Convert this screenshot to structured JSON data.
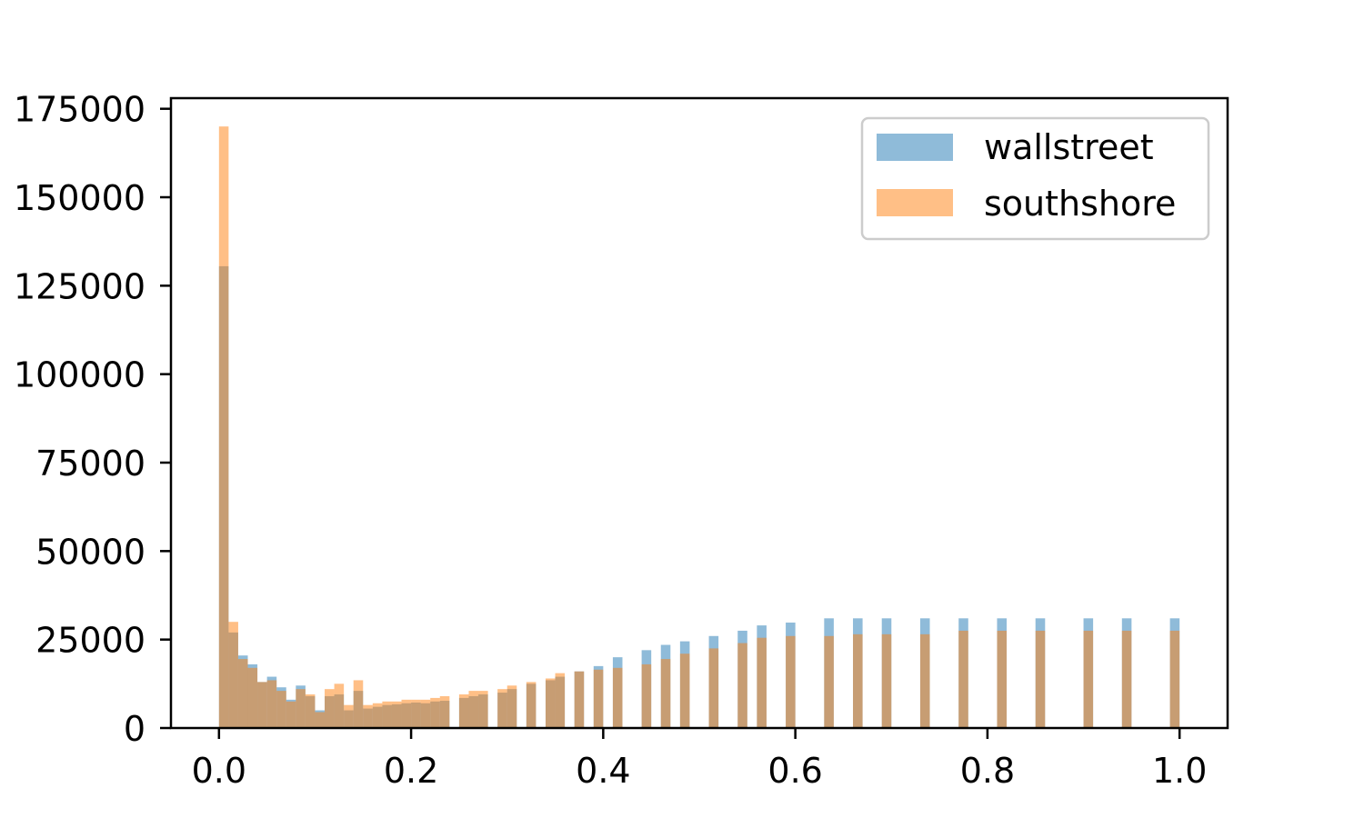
{
  "chart_data": {
    "type": "bar",
    "title": "",
    "xlabel": "",
    "ylabel": "",
    "xlim": [
      -0.05,
      1.05
    ],
    "ylim": [
      0,
      178000
    ],
    "xticks": [
      0.0,
      0.2,
      0.4,
      0.6,
      0.8,
      1.0
    ],
    "xtick_labels": [
      "0.0",
      "0.2",
      "0.4",
      "0.6",
      "0.8",
      "1.0"
    ],
    "yticks": [
      0,
      25000,
      50000,
      75000,
      100000,
      125000,
      150000,
      175000
    ],
    "ytick_labels": [
      "0",
      "25000",
      "50000",
      "75000",
      "100000",
      "125000",
      "150000",
      "175000"
    ],
    "bin_width": 0.01,
    "grid": false,
    "legend_position": "top-right",
    "x": [
      0.0,
      0.01,
      0.02,
      0.03,
      0.04,
      0.05,
      0.06,
      0.07,
      0.08,
      0.09,
      0.1,
      0.11,
      0.12,
      0.13,
      0.14,
      0.15,
      0.16,
      0.17,
      0.18,
      0.19,
      0.2,
      0.21,
      0.22,
      0.23,
      0.25,
      0.26,
      0.27,
      0.29,
      0.3,
      0.32,
      0.34,
      0.35,
      0.37,
      0.39,
      0.41,
      0.44,
      0.46,
      0.48,
      0.51,
      0.54,
      0.56,
      0.59,
      0.63,
      0.66,
      0.69,
      0.73,
      0.77,
      0.81,
      0.85,
      0.9,
      0.94,
      0.99
    ],
    "series": [
      {
        "name": "wallstreet",
        "color": "#1f77b4",
        "values": [
          130500,
          27000,
          20500,
          18000,
          13000,
          14500,
          11500,
          8000,
          12000,
          9000,
          5000,
          9000,
          9500,
          5000,
          10500,
          5500,
          6000,
          6500,
          6700,
          7000,
          7200,
          7000,
          7500,
          7700,
          8500,
          9000,
          9500,
          10000,
          11000,
          12500,
          13500,
          14500,
          16000,
          17500,
          20000,
          22000,
          23500,
          24500,
          26000,
          27500,
          29000,
          29800,
          31000,
          31000,
          31000,
          31000,
          31000,
          31000,
          31000,
          31000,
          31000,
          31000
        ]
      },
      {
        "name": "southshore",
        "color": "#ff7f0e",
        "values": [
          170000,
          30000,
          19500,
          17000,
          13000,
          13500,
          10500,
          7500,
          11000,
          9500,
          4500,
          11000,
          12500,
          6500,
          13500,
          6500,
          7000,
          7500,
          7500,
          8000,
          8000,
          8000,
          8500,
          9000,
          9500,
          10500,
          10500,
          11000,
          12000,
          13000,
          14000,
          15500,
          16000,
          16500,
          17000,
          18000,
          19500,
          21000,
          22500,
          24000,
          25500,
          26000,
          26000,
          26500,
          26500,
          26500,
          27500,
          27500,
          27500,
          27500,
          27500,
          27500
        ]
      }
    ]
  }
}
